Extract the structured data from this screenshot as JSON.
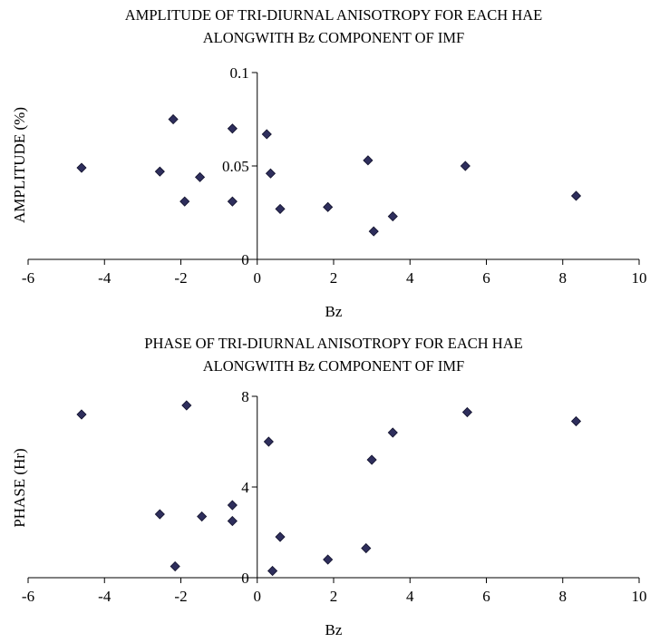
{
  "chart_data": [
    {
      "type": "scatter",
      "title_lines": [
        "AMPLITUDE OF TRI-DIURNAL ANISOTROPY FOR EACH HAE",
        "ALONGWITH Bz COMPONENT OF IMF"
      ],
      "xlabel": "Bz",
      "ylabel": "AMPLITUDE (%)",
      "xlim": [
        -6,
        10
      ],
      "ylim": [
        0,
        0.1
      ],
      "x_ticks": [
        "-6",
        "-4",
        "-2",
        "0",
        "2",
        "4",
        "6",
        "8",
        "10"
      ],
      "y_ticks": [
        "0",
        "0.05",
        "0.1"
      ],
      "marker_color": "#2e2e5c",
      "grid": false,
      "points": [
        {
          "x": -4.6,
          "y": 0.049
        },
        {
          "x": -2.55,
          "y": 0.047
        },
        {
          "x": -2.2,
          "y": 0.075
        },
        {
          "x": -1.9,
          "y": 0.031
        },
        {
          "x": -1.5,
          "y": 0.044
        },
        {
          "x": -0.65,
          "y": 0.07
        },
        {
          "x": -0.65,
          "y": 0.031
        },
        {
          "x": 0.25,
          "y": 0.067
        },
        {
          "x": 0.35,
          "y": 0.046
        },
        {
          "x": 0.6,
          "y": 0.027
        },
        {
          "x": 1.85,
          "y": 0.028
        },
        {
          "x": 2.9,
          "y": 0.053
        },
        {
          "x": 3.05,
          "y": 0.015
        },
        {
          "x": 3.55,
          "y": 0.023
        },
        {
          "x": 5.45,
          "y": 0.05
        },
        {
          "x": 8.35,
          "y": 0.034
        }
      ]
    },
    {
      "type": "scatter",
      "title_lines": [
        "PHASE OF TRI-DIURNAL ANISOTROPY FOR EACH HAE",
        "ALONGWITH Bz COMPONENT OF IMF"
      ],
      "xlabel": "Bz",
      "ylabel": "PHASE (Hr)",
      "xlim": [
        -6,
        10
      ],
      "ylim": [
        0,
        8
      ],
      "x_ticks": [
        "-6",
        "-4",
        "-2",
        "0",
        "2",
        "4",
        "6",
        "8",
        "10"
      ],
      "y_ticks": [
        "0",
        "4",
        "8"
      ],
      "marker_color": "#2e2e5c",
      "grid": false,
      "points": [
        {
          "x": -4.6,
          "y": 7.2
        },
        {
          "x": -2.55,
          "y": 2.8
        },
        {
          "x": -2.15,
          "y": 0.5
        },
        {
          "x": -1.85,
          "y": 7.6
        },
        {
          "x": -1.45,
          "y": 2.7
        },
        {
          "x": -0.65,
          "y": 3.2
        },
        {
          "x": -0.65,
          "y": 2.5
        },
        {
          "x": 0.3,
          "y": 6.0
        },
        {
          "x": 0.4,
          "y": 0.3
        },
        {
          "x": 0.6,
          "y": 1.8
        },
        {
          "x": 1.85,
          "y": 0.8
        },
        {
          "x": 2.85,
          "y": 1.3
        },
        {
          "x": 3.0,
          "y": 5.2
        },
        {
          "x": 3.55,
          "y": 6.4
        },
        {
          "x": 5.5,
          "y": 7.3
        },
        {
          "x": 8.35,
          "y": 6.9
        }
      ]
    }
  ]
}
